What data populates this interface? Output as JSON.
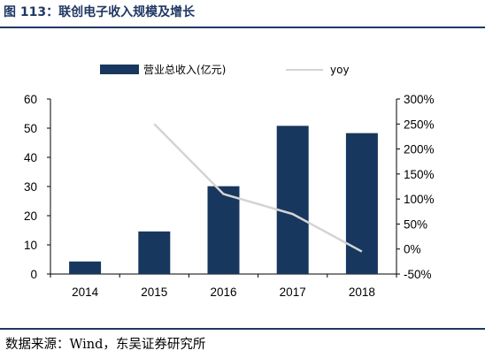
{
  "title": "图 113：联创电子收入规模及增长",
  "source": "数据来源：Wind，东吴证券研究所",
  "colors": {
    "bar": "#17375e",
    "line": "#d4d4d4",
    "title": "#1f3864",
    "axis": "#000000"
  },
  "chart_data": {
    "type": "bar",
    "categories": [
      "2014",
      "2015",
      "2016",
      "2017",
      "2018"
    ],
    "series": [
      {
        "name": "营业总收入(亿元)",
        "type": "bar",
        "axis": "left",
        "values": [
          4.3,
          14.6,
          30.1,
          50.8,
          48.3
        ]
      },
      {
        "name": "yoy",
        "type": "line",
        "axis": "right",
        "values": [
          null,
          250,
          110,
          70,
          -5
        ]
      }
    ],
    "left_axis": {
      "ylim": [
        0,
        60
      ],
      "ticks": [
        "0",
        "10",
        "20",
        "30",
        "40",
        "50",
        "60"
      ]
    },
    "right_axis": {
      "ylim": [
        -50,
        300
      ],
      "ticks": [
        "-50%",
        "0%",
        "50%",
        "100%",
        "150%",
        "200%",
        "250%",
        "300%"
      ]
    },
    "legend_position": "top",
    "grid": false
  }
}
